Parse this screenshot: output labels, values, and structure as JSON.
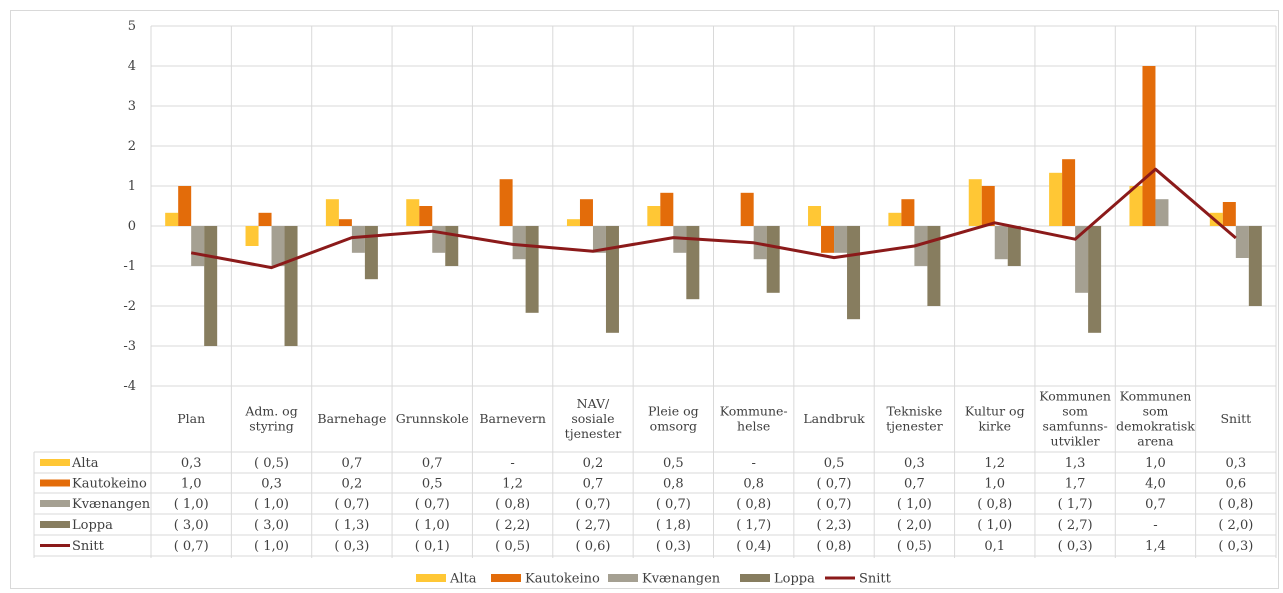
{
  "chart_data": {
    "type": "bar",
    "title": "",
    "xlabel": "",
    "ylabel": "",
    "ylim": [
      -4,
      5
    ],
    "yticks": [
      5,
      4,
      3,
      2,
      1,
      0,
      -1,
      -2,
      -3,
      -4
    ],
    "grid": true,
    "legend_position": "bottom",
    "categories": [
      [
        "Plan"
      ],
      [
        "Adm. og",
        "styring"
      ],
      [
        "Barnehage"
      ],
      [
        "Grunnskole"
      ],
      [
        "Barnevern"
      ],
      [
        "NAV/",
        "sosiale",
        "tjenester"
      ],
      [
        "Pleie og",
        "omsorg"
      ],
      [
        "Kommune-",
        "helse"
      ],
      [
        "Landbruk"
      ],
      [
        "Tekniske",
        "tjenester"
      ],
      [
        "Kultur og",
        "kirke"
      ],
      [
        "Kommunen",
        "som",
        "samfunns-",
        "utvikler"
      ],
      [
        "Kommunen",
        "som",
        "demokratisk",
        "arena"
      ],
      [
        "Snitt"
      ]
    ],
    "series": [
      {
        "name": "Alta",
        "kind": "bar",
        "color": "#FFC735",
        "values": [
          0.33,
          -0.5,
          0.67,
          0.67,
          null,
          0.17,
          0.5,
          null,
          0.5,
          0.33,
          1.17,
          1.33,
          1.0,
          0.33
        ],
        "labels": [
          "0,3",
          "( 0,5)",
          "0,7",
          "0,7",
          "-",
          "0,2",
          "0,5",
          "-",
          "0,5",
          "0,3",
          "1,2",
          "1,3",
          "1,0",
          "0,3"
        ]
      },
      {
        "name": "Kautokeino",
        "kind": "bar",
        "color": "#E36C0A",
        "values": [
          1.0,
          0.33,
          0.17,
          0.5,
          1.17,
          0.67,
          0.83,
          0.83,
          -0.67,
          0.67,
          1.0,
          1.67,
          4.0,
          0.6
        ],
        "labels": [
          "1,0",
          "0,3",
          "0,2",
          "0,5",
          "1,2",
          "0,7",
          "0,8",
          "0,8",
          "( 0,7)",
          "0,7",
          "1,0",
          "1,7",
          "4,0",
          "0,6"
        ]
      },
      {
        "name": "Kvænangen",
        "kind": "bar",
        "color": "#A5A092",
        "values": [
          -1.0,
          -1.0,
          -0.67,
          -0.67,
          -0.83,
          -0.67,
          -0.67,
          -0.83,
          -0.67,
          -1.0,
          -0.83,
          -1.67,
          0.67,
          -0.8
        ],
        "labels": [
          "( 1,0)",
          "( 1,0)",
          "( 0,7)",
          "( 0,7)",
          "( 0,8)",
          "( 0,7)",
          "( 0,7)",
          "( 0,8)",
          "( 0,7)",
          "( 1,0)",
          "( 0,8)",
          "( 1,7)",
          "0,7",
          "( 0,8)"
        ]
      },
      {
        "name": "Loppa",
        "kind": "bar",
        "color": "#877D5F",
        "values": [
          -3.0,
          -3.0,
          -1.33,
          -1.0,
          -2.17,
          -2.67,
          -1.83,
          -1.67,
          -2.33,
          -2.0,
          -1.0,
          -2.67,
          null,
          -2.0
        ],
        "labels": [
          "( 3,0)",
          "( 3,0)",
          "( 1,3)",
          "( 1,0)",
          "( 2,2)",
          "( 2,7)",
          "( 1,8)",
          "( 1,7)",
          "( 2,3)",
          "( 2,0)",
          "( 1,0)",
          "( 2,7)",
          "-",
          "( 2,0)"
        ]
      },
      {
        "name": "Snitt",
        "kind": "line",
        "color": "#8B1A1A",
        "values": [
          -0.67,
          -1.04,
          -0.29,
          -0.13,
          -0.46,
          -0.63,
          -0.29,
          -0.42,
          -0.79,
          -0.5,
          0.08,
          -0.33,
          1.42,
          -0.3
        ],
        "labels": [
          "( 0,7)",
          "( 1,0)",
          "( 0,3)",
          "( 0,1)",
          "( 0,5)",
          "( 0,6)",
          "( 0,3)",
          "( 0,4)",
          "( 0,8)",
          "( 0,5)",
          "0,1",
          "( 0,3)",
          "1,4",
          "( 0,3)"
        ]
      }
    ]
  }
}
